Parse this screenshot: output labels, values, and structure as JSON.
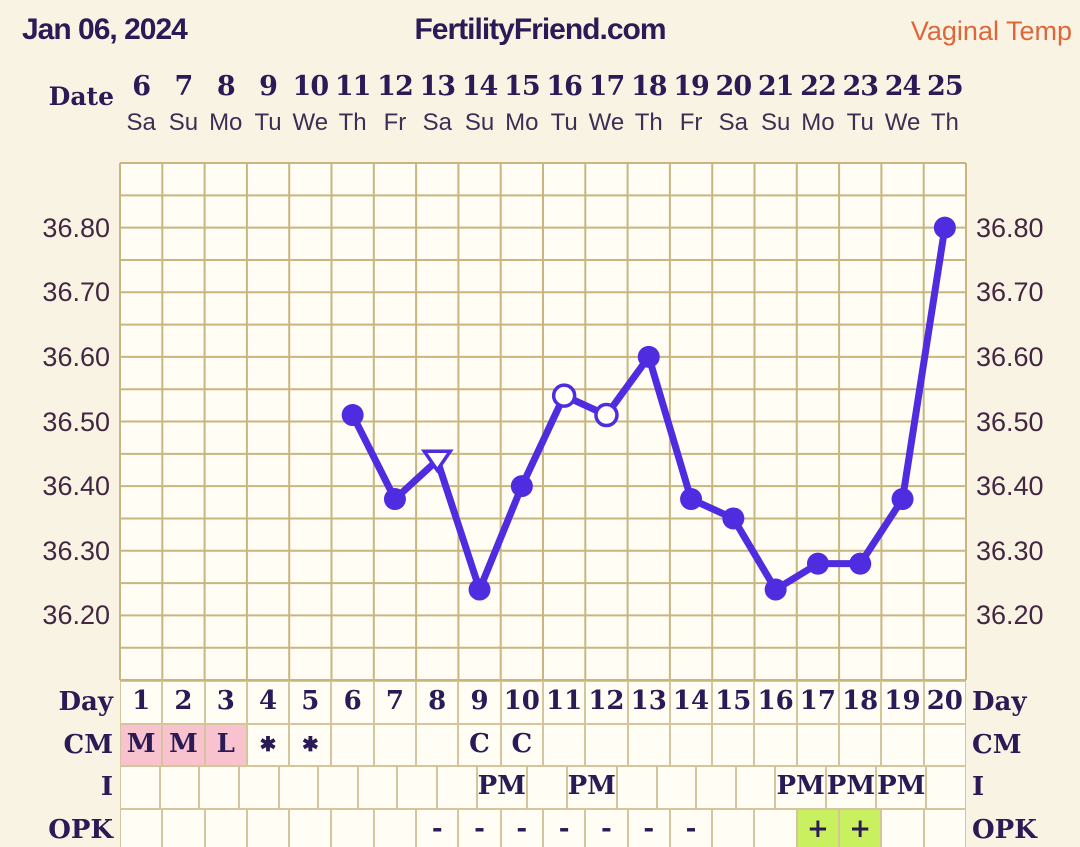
{
  "header": {
    "date": "Jan 06, 2024",
    "site": "FertilityFriend.com",
    "mode": "Vaginal Temp"
  },
  "labels": {
    "date_row": "Date"
  },
  "calendar": {
    "dates": [
      "6",
      "7",
      "8",
      "9",
      "10",
      "11",
      "12",
      "13",
      "14",
      "15",
      "16",
      "17",
      "18",
      "19",
      "20",
      "21",
      "22",
      "23",
      "24",
      "25"
    ],
    "weekdays": [
      "Sa",
      "Su",
      "Mo",
      "Tu",
      "We",
      "Th",
      "Fr",
      "Sa",
      "Su",
      "Mo",
      "Tu",
      "We",
      "Th",
      "Fr",
      "Sa",
      "Su",
      "Mo",
      "Tu",
      "We",
      "Th"
    ]
  },
  "y_axis": {
    "labels": [
      "36.80",
      "36.70",
      "36.60",
      "36.50",
      "36.40",
      "36.30",
      "36.20"
    ]
  },
  "chart_data": {
    "type": "line",
    "title": "FertilityFriend.com",
    "series_name": "Vaginal Temp",
    "x_axis": "cycle day 1-20 (dates Jan 6 - Jan 25)",
    "ylim": [
      36.1,
      36.9
    ],
    "y_gridline_step": 0.05,
    "y_labeled_step": 0.1,
    "grid": true,
    "points": [
      {
        "day": 6,
        "temp": 36.51,
        "marker": "filled-circle"
      },
      {
        "day": 7,
        "temp": 36.38,
        "marker": "filled-circle"
      },
      {
        "day": 8,
        "temp": 36.44,
        "marker": "open-triangle"
      },
      {
        "day": 9,
        "temp": 36.24,
        "marker": "filled-circle"
      },
      {
        "day": 10,
        "temp": 36.4,
        "marker": "filled-circle"
      },
      {
        "day": 11,
        "temp": 36.54,
        "marker": "open-circle"
      },
      {
        "day": 12,
        "temp": 36.51,
        "marker": "open-circle"
      },
      {
        "day": 13,
        "temp": 36.6,
        "marker": "filled-circle"
      },
      {
        "day": 14,
        "temp": 36.38,
        "marker": "filled-circle"
      },
      {
        "day": 15,
        "temp": 36.35,
        "marker": "filled-circle"
      },
      {
        "day": 16,
        "temp": 36.24,
        "marker": "filled-circle"
      },
      {
        "day": 17,
        "temp": 36.28,
        "marker": "filled-circle"
      },
      {
        "day": 18,
        "temp": 36.28,
        "marker": "filled-circle"
      },
      {
        "day": 19,
        "temp": 36.38,
        "marker": "filled-circle"
      },
      {
        "day": 20,
        "temp": 36.8,
        "marker": "filled-circle"
      }
    ]
  },
  "table": {
    "rows": [
      {
        "key": "day",
        "label": "Day",
        "cells": [
          {
            "text": "1"
          },
          {
            "text": "2"
          },
          {
            "text": "3"
          },
          {
            "text": "4"
          },
          {
            "text": "5"
          },
          {
            "text": "6"
          },
          {
            "text": "7"
          },
          {
            "text": "8"
          },
          {
            "text": "9"
          },
          {
            "text": "10"
          },
          {
            "text": "11"
          },
          {
            "text": "12"
          },
          {
            "text": "13"
          },
          {
            "text": "14"
          },
          {
            "text": "15"
          },
          {
            "text": "16"
          },
          {
            "text": "17"
          },
          {
            "text": "18"
          },
          {
            "text": "19"
          },
          {
            "text": "20"
          }
        ]
      },
      {
        "key": "cm",
        "label": "CM",
        "cells": [
          {
            "text": "M",
            "bg": "pink"
          },
          {
            "text": "M",
            "bg": "pink"
          },
          {
            "text": "L",
            "bg": "pink"
          },
          {
            "text": "✱"
          },
          {
            "text": "✱"
          },
          {
            "text": ""
          },
          {
            "text": ""
          },
          {
            "text": ""
          },
          {
            "text": "C"
          },
          {
            "text": "C"
          },
          {
            "text": ""
          },
          {
            "text": ""
          },
          {
            "text": ""
          },
          {
            "text": ""
          },
          {
            "text": ""
          },
          {
            "text": ""
          },
          {
            "text": ""
          },
          {
            "text": ""
          },
          {
            "text": ""
          },
          {
            "text": ""
          }
        ]
      },
      {
        "key": "i",
        "label": "I",
        "cells": [
          {
            "text": ""
          },
          {
            "text": ""
          },
          {
            "text": ""
          },
          {
            "text": ""
          },
          {
            "text": ""
          },
          {
            "text": ""
          },
          {
            "text": ""
          },
          {
            "text": ""
          },
          {
            "text": ""
          },
          {
            "text": "PM"
          },
          {
            "text": ""
          },
          {
            "text": "PM"
          },
          {
            "text": ""
          },
          {
            "text": ""
          },
          {
            "text": ""
          },
          {
            "text": ""
          },
          {
            "text": "PM"
          },
          {
            "text": "PM"
          },
          {
            "text": "PM"
          },
          {
            "text": ""
          }
        ]
      },
      {
        "key": "opk",
        "label": "OPK",
        "cells": [
          {
            "text": ""
          },
          {
            "text": ""
          },
          {
            "text": ""
          },
          {
            "text": ""
          },
          {
            "text": ""
          },
          {
            "text": ""
          },
          {
            "text": ""
          },
          {
            "text": "-"
          },
          {
            "text": "-"
          },
          {
            "text": "-"
          },
          {
            "text": "-"
          },
          {
            "text": "-"
          },
          {
            "text": "-"
          },
          {
            "text": "-"
          },
          {
            "text": ""
          },
          {
            "text": ""
          },
          {
            "text": "+",
            "bg": "green"
          },
          {
            "text": "+",
            "bg": "green"
          },
          {
            "text": ""
          },
          {
            "text": ""
          }
        ]
      }
    ]
  },
  "colors": {
    "line": "#4f2ce0",
    "marker_fill": "#4f2ce0",
    "open_marker_fill": "#fffef8",
    "grid": "#c9b67f",
    "grid_bg": "#fffdf4",
    "page_bg": "#f9f3e3",
    "ink": "#2a1a55",
    "axis_text": "#432742",
    "mode_orange": "#e0663a",
    "cm_pink": "#f8c3ce",
    "opk_green": "#c9f05e"
  }
}
